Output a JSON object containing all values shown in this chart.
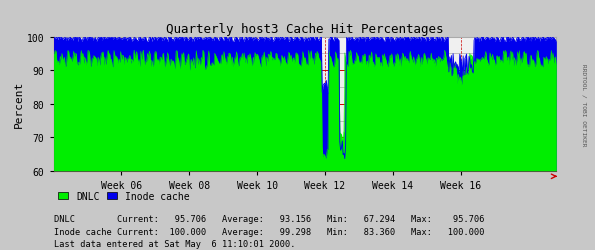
{
  "title": "Quarterly host3 Cache Hit Percentages",
  "ylabel": "Percent",
  "xlim": [
    0,
    100
  ],
  "ylim": [
    60,
    100
  ],
  "yticks": [
    60,
    70,
    80,
    90,
    100
  ],
  "week_labels": [
    "Week 06",
    "Week 08",
    "Week 10",
    "Week 12",
    "Week 14",
    "Week 16"
  ],
  "week_positions": [
    13.5,
    27,
    40.5,
    54,
    67.5,
    81
  ],
  "plot_bg_color": "#f0f0f0",
  "outer_bg": "#c8c8c8",
  "grid_color_major_h": "#cc0000",
  "grid_color_minor_h": "#aaaaaa",
  "grid_color_v": "#cc0000",
  "dnlc_color": "#00ee00",
  "inode_color": "#0000ee",
  "dnlc_label": "DNLC",
  "inode_label": "Inode cache",
  "stats_text1": "DNLC        Current:   95.706   Average:   93.156   Min:   67.294   Max:    95.706",
  "stats_text2": "Inode cache Current:  100.000   Average:   99.298   Min:   83.360   Max:   100.000",
  "last_data_text": "Last data entered at Sat May  6 11:10:01 2000.",
  "side_text": "RRDTOOL / TOBI OETIKER",
  "axis_color": "#cc0000",
  "spine_color": "#aaaaaa"
}
